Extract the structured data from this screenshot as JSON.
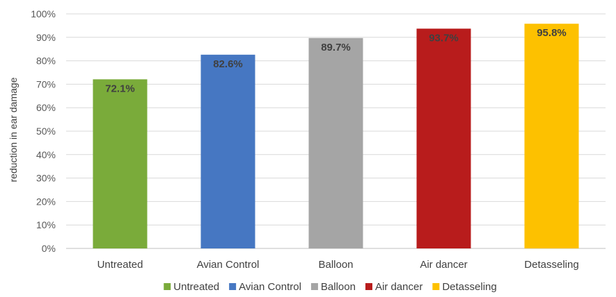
{
  "chart_data": {
    "type": "bar",
    "title": "",
    "xlabel": "",
    "ylabel": "reduction in ear damage",
    "ylim": [
      0,
      100
    ],
    "yticks": [
      "0%",
      "10%",
      "20%",
      "30%",
      "40%",
      "50%",
      "60%",
      "70%",
      "80%",
      "90%",
      "100%"
    ],
    "grid": true,
    "legend_position": "bottom",
    "categories": [
      "Untreated",
      "Avian Control",
      "Balloon",
      "Air dancer",
      "Detasseling"
    ],
    "values": [
      72.1,
      82.6,
      89.7,
      93.7,
      95.8
    ],
    "data_labels": [
      "72.1%",
      "82.6%",
      "89.7%",
      "93.7%",
      "95.8%"
    ],
    "colors": [
      "#7aab3a",
      "#4677c2",
      "#a5a5a5",
      "#b81c1c",
      "#fdc100"
    ],
    "legend": [
      "Untreated",
      "Avian Control",
      "Balloon",
      "Air dancer",
      "Detasseling"
    ]
  }
}
